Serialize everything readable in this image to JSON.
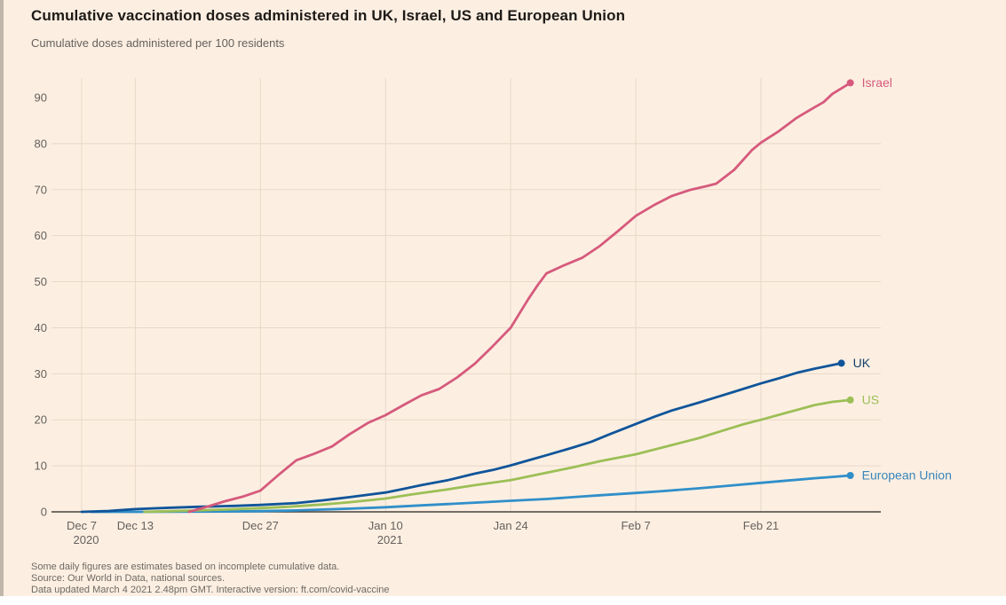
{
  "title": "Cumulative vaccination doses administered in UK, Israel, US and European Union",
  "subtitle": "Cumulative doses administered per 100 residents",
  "footer": {
    "note": "Some daily figures are estimates based on incomplete cumulative data.",
    "source": "Source: Our World in Data, national sources.",
    "updated": "Data updated March 4 2021 2.48pm GMT. Interactive version: ft.com/covid-vaccine"
  },
  "colors": {
    "background": "#fcefe2",
    "gridline": "#e8d8c8",
    "axis_line": "#46413c",
    "tick_label": "#66605c",
    "title_text": "#1e1a17",
    "footer_text": "#6e6862"
  },
  "chart_data": {
    "type": "line",
    "title": "Cumulative vaccination doses administered in UK, Israel, US and European Union",
    "ylabel": "Cumulative doses administered per 100 residents",
    "xlabel": "",
    "ylim": [
      0,
      95
    ],
    "grid": true,
    "gridline_value_max": 80,
    "legend_position": "end-of-line labels",
    "x_unit": "days after Dec 7 2020",
    "y_ticks": [
      0,
      10,
      20,
      30,
      40,
      50,
      60,
      70,
      80,
      90
    ],
    "x_ticks": [
      {
        "day": 0,
        "label": "Dec 7",
        "sublabel": "2020"
      },
      {
        "day": 6,
        "label": "Dec 13",
        "sublabel": ""
      },
      {
        "day": 20,
        "label": "Dec 27",
        "sublabel": ""
      },
      {
        "day": 34,
        "label": "Jan 10",
        "sublabel": "2021"
      },
      {
        "day": 48,
        "label": "Jan 24",
        "sublabel": ""
      },
      {
        "day": 62,
        "label": "Feb 7",
        "sublabel": ""
      },
      {
        "day": 76,
        "label": "Feb 21",
        "sublabel": ""
      }
    ],
    "series": [
      {
        "id": "european-union",
        "name": "European Union",
        "color": "#308fc9",
        "label_color": "#3a85b9",
        "points": [
          [
            1,
            0
          ],
          [
            6,
            0.0
          ],
          [
            13,
            0.05
          ],
          [
            17,
            0.1
          ],
          [
            20,
            0.15
          ],
          [
            24,
            0.3
          ],
          [
            27,
            0.5
          ],
          [
            30,
            0.7
          ],
          [
            34,
            1.0
          ],
          [
            38,
            1.4
          ],
          [
            41,
            1.7
          ],
          [
            45,
            2.1
          ],
          [
            48,
            2.4
          ],
          [
            52,
            2.8
          ],
          [
            55,
            3.2
          ],
          [
            58,
            3.6
          ],
          [
            62,
            4.1
          ],
          [
            65,
            4.5
          ],
          [
            69,
            5.1
          ],
          [
            72,
            5.6
          ],
          [
            76,
            6.3
          ],
          [
            79,
            6.8
          ],
          [
            82,
            7.3
          ],
          [
            84,
            7.6
          ],
          [
            86,
            7.9
          ]
        ]
      },
      {
        "id": "us",
        "name": "US",
        "color": "#9cbf56",
        "label_color": "#9cbf56",
        "points": [
          [
            7,
            0
          ],
          [
            10,
            0.15
          ],
          [
            13,
            0.3
          ],
          [
            16,
            0.5
          ],
          [
            20,
            0.8
          ],
          [
            23,
            1.1
          ],
          [
            27,
            1.6
          ],
          [
            30,
            2.1
          ],
          [
            34,
            2.9
          ],
          [
            37,
            3.8
          ],
          [
            41,
            4.9
          ],
          [
            44,
            5.8
          ],
          [
            48,
            6.9
          ],
          [
            51,
            8.1
          ],
          [
            55,
            9.7
          ],
          [
            58,
            11.0
          ],
          [
            62,
            12.5
          ],
          [
            65,
            14.0
          ],
          [
            67,
            15.0
          ],
          [
            69,
            16.0
          ],
          [
            72,
            17.8
          ],
          [
            74,
            19.0
          ],
          [
            76,
            20.0
          ],
          [
            79,
            21.6
          ],
          [
            82,
            23.2
          ],
          [
            84,
            23.9
          ],
          [
            86,
            24.3
          ]
        ]
      },
      {
        "id": "uk",
        "name": "UK",
        "color": "#10559a",
        "label_color": "#14406b",
        "points": [
          [
            0,
            0
          ],
          [
            3,
            0.2
          ],
          [
            6,
            0.6
          ],
          [
            10,
            0.9
          ],
          [
            13,
            1.1
          ],
          [
            17,
            1.3
          ],
          [
            20,
            1.5
          ],
          [
            24,
            1.9
          ],
          [
            27,
            2.5
          ],
          [
            30,
            3.2
          ],
          [
            34,
            4.2
          ],
          [
            36,
            5.0
          ],
          [
            38,
            5.8
          ],
          [
            41,
            6.9
          ],
          [
            44,
            8.3
          ],
          [
            46,
            9.1
          ],
          [
            48,
            10.1
          ],
          [
            50,
            11.2
          ],
          [
            52,
            12.3
          ],
          [
            55,
            14.0
          ],
          [
            57,
            15.2
          ],
          [
            59,
            16.8
          ],
          [
            62,
            19.1
          ],
          [
            64,
            20.6
          ],
          [
            66,
            22.0
          ],
          [
            69,
            23.7
          ],
          [
            71,
            24.9
          ],
          [
            73,
            26.1
          ],
          [
            76,
            27.9
          ],
          [
            78,
            29.0
          ],
          [
            80,
            30.2
          ],
          [
            82,
            31.1
          ],
          [
            84,
            31.9
          ],
          [
            85,
            32.3
          ]
        ]
      },
      {
        "id": "israel",
        "name": "Israel",
        "color": "#d65a7c",
        "label_color": "#d65a7c",
        "points": [
          [
            12,
            0
          ],
          [
            14,
            1.1
          ],
          [
            16,
            2.3
          ],
          [
            18,
            3.3
          ],
          [
            20,
            4.6
          ],
          [
            22,
            8.0
          ],
          [
            24,
            11.2
          ],
          [
            26,
            12.6
          ],
          [
            28,
            14.2
          ],
          [
            30,
            16.9
          ],
          [
            32,
            19.3
          ],
          [
            34,
            21.0
          ],
          [
            36,
            23.2
          ],
          [
            38,
            25.3
          ],
          [
            40,
            26.7
          ],
          [
            42,
            29.2
          ],
          [
            44,
            32.2
          ],
          [
            46,
            36.0
          ],
          [
            48,
            40.0
          ],
          [
            50,
            46.3
          ],
          [
            51,
            49.2
          ],
          [
            52,
            51.8
          ],
          [
            54,
            53.6
          ],
          [
            56,
            55.2
          ],
          [
            58,
            57.8
          ],
          [
            60,
            61.0
          ],
          [
            62,
            64.3
          ],
          [
            64,
            66.6
          ],
          [
            66,
            68.6
          ],
          [
            68,
            69.9
          ],
          [
            70,
            70.8
          ],
          [
            71,
            71.3
          ],
          [
            73,
            74.3
          ],
          [
            75,
            78.6
          ],
          [
            76,
            80.2
          ],
          [
            78,
            82.7
          ],
          [
            80,
            85.6
          ],
          [
            82,
            87.9
          ],
          [
            83,
            89.0
          ],
          [
            84,
            90.8
          ],
          [
            86,
            93.2
          ]
        ]
      }
    ]
  }
}
